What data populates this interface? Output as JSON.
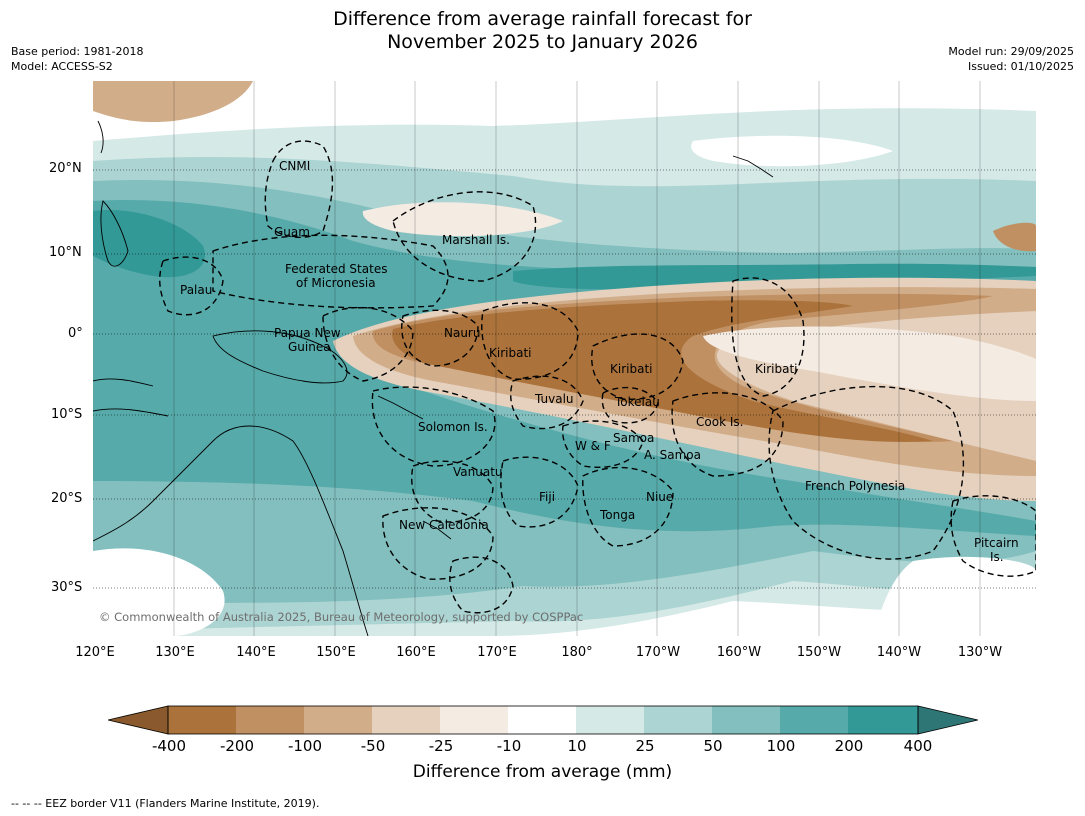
{
  "title": {
    "line1": "Difference from average rainfall forecast for",
    "line2": "November 2025 to January 2026"
  },
  "meta": {
    "base_period": "Base period: 1981-2018",
    "model": "Model: ACCESS-S2",
    "model_run": "Model run: 29/09/2025",
    "issued": "Issued: 01/10/2025"
  },
  "axes": {
    "lat_labels": [
      "20°N",
      "10°N",
      "0°",
      "10°S",
      "20°S",
      "30°S"
    ],
    "lon_labels": [
      "120°E",
      "130°E",
      "140°E",
      "150°E",
      "160°E",
      "170°E",
      "180°",
      "170°W",
      "160°W",
      "150°W",
      "140°W",
      "130°W"
    ]
  },
  "regions": {
    "cnmi": "CNMI",
    "guam": "Guam",
    "marshall": "Marshall Is.",
    "fsm_line1": "Federated States",
    "fsm_line2": "of Micronesia",
    "palau": "Palau",
    "png_line1": "Papua New",
    "png_line2": "Guinea",
    "nauru": "Nauru",
    "kiribati_w": "Kiribati",
    "kiribati_c": "Kiribati",
    "kiribati_e": "Kiribati",
    "tuvalu": "Tuvalu",
    "tokelau": "Tokelau",
    "cook": "Cook Is.",
    "solomon": "Solomon Is.",
    "samoa": "Samoa",
    "wf": "W & F",
    "asamoa": "A. Samoa",
    "vanuatu": "Vanuatu",
    "fiji": "Fiji",
    "niue": "Niue",
    "tonga": "Tonga",
    "newcal": "New Caledonia",
    "frpoly": "French Polynesia",
    "pitcairn_line1": "Pitcairn",
    "pitcairn_line2": "Is."
  },
  "copyright": "© Commonwealth of Australia 2025, Bureau of Meteorology, supported by COSPPac",
  "colorbar": {
    "label": "Difference from average (mm)",
    "ticks": [
      "-400",
      "-200",
      "-100",
      "-50",
      "-25",
      "-10",
      "10",
      "25",
      "50",
      "100",
      "200",
      "400"
    ],
    "colors": {
      "below_min": "#8a5a2e",
      "b400_200": "#ab733b",
      "b200_100": "#c09063",
      "b100_50": "#d1ad8a",
      "b50_25": "#e5d1be",
      "b25_10": "#f4ebe3",
      "neutral": "#ffffff",
      "w10_25": "#d5e9e7",
      "w25_50": "#acd4d2",
      "w50_100": "#82bfbe",
      "w100_200": "#57aaaa",
      "w200_400": "#339996",
      "above_max": "#2e7575"
    }
  },
  "footnote": "--  --  -- EEZ border V11 (Flanders Marine Institute, 2019)."
}
